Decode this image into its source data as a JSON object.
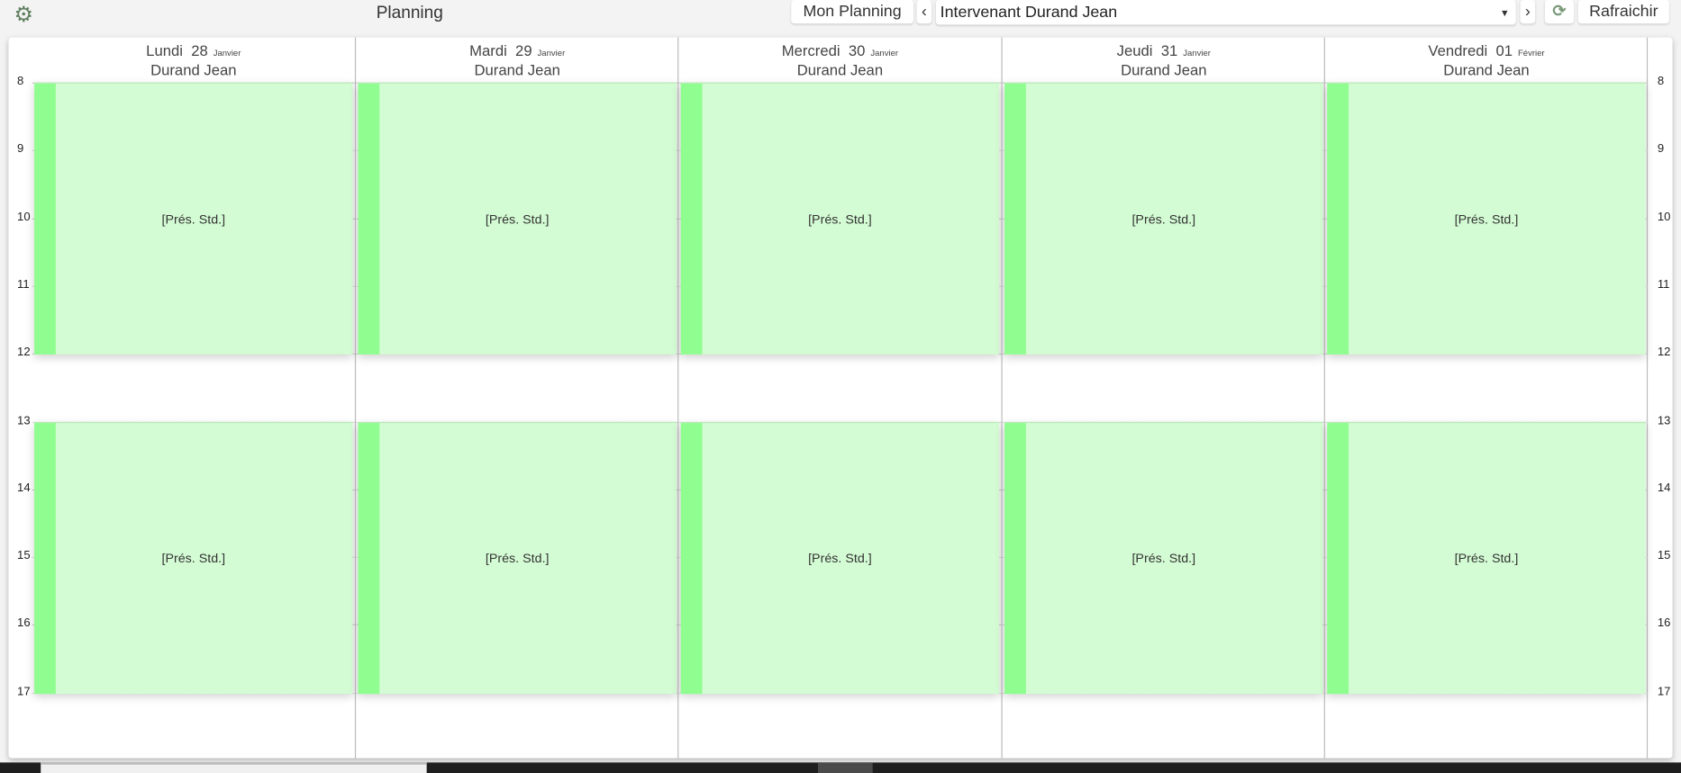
{
  "header": {
    "title": "Planning",
    "settings_icon": "gear-icon",
    "my_planning_label": "Mon Planning",
    "prev_icon": "chevron-left-icon",
    "next_icon": "chevron-right-icon",
    "selector_value": "Intervenant Durand Jean",
    "refresh_icon": "refresh-icon",
    "refresh_label": "Rafraichir"
  },
  "hours": [
    "8",
    "9",
    "10",
    "11",
    "12",
    "13",
    "14",
    "15",
    "16",
    "17"
  ],
  "days": [
    {
      "weekday": "Lundi",
      "day": "28",
      "month": "Janvier",
      "person": "Durand Jean",
      "events": [
        {
          "start": 8,
          "end": 12,
          "label": "[Prés. Std.]"
        },
        {
          "start": 13,
          "end": 17,
          "label": "[Prés. Std.]"
        }
      ]
    },
    {
      "weekday": "Mardi",
      "day": "29",
      "month": "Janvier",
      "person": "Durand Jean",
      "events": [
        {
          "start": 8,
          "end": 12,
          "label": "[Prés. Std.]"
        },
        {
          "start": 13,
          "end": 17,
          "label": "[Prés. Std.]"
        }
      ]
    },
    {
      "weekday": "Mercredi",
      "day": "30",
      "month": "Janvier",
      "person": "Durand Jean",
      "events": [
        {
          "start": 8,
          "end": 12,
          "label": "[Prés. Std.]"
        },
        {
          "start": 13,
          "end": 17,
          "label": "[Prés. Std.]"
        }
      ]
    },
    {
      "weekday": "Jeudi",
      "day": "31",
      "month": "Janvier",
      "person": "Durand Jean",
      "events": [
        {
          "start": 8,
          "end": 12,
          "label": "[Prés. Std.]"
        },
        {
          "start": 13,
          "end": 17,
          "label": "[Prés. Std.]"
        }
      ]
    },
    {
      "weekday": "Vendredi",
      "day": "01",
      "month": "Février",
      "person": "Durand Jean",
      "events": [
        {
          "start": 8,
          "end": 12,
          "label": "[Prés. Std.]"
        },
        {
          "start": 13,
          "end": 17,
          "label": "[Prés. Std.]"
        }
      ]
    }
  ],
  "colors": {
    "event_bg": "#d4fcd4",
    "event_stripe": "#90fd90",
    "gear": "#5f7f5f"
  }
}
